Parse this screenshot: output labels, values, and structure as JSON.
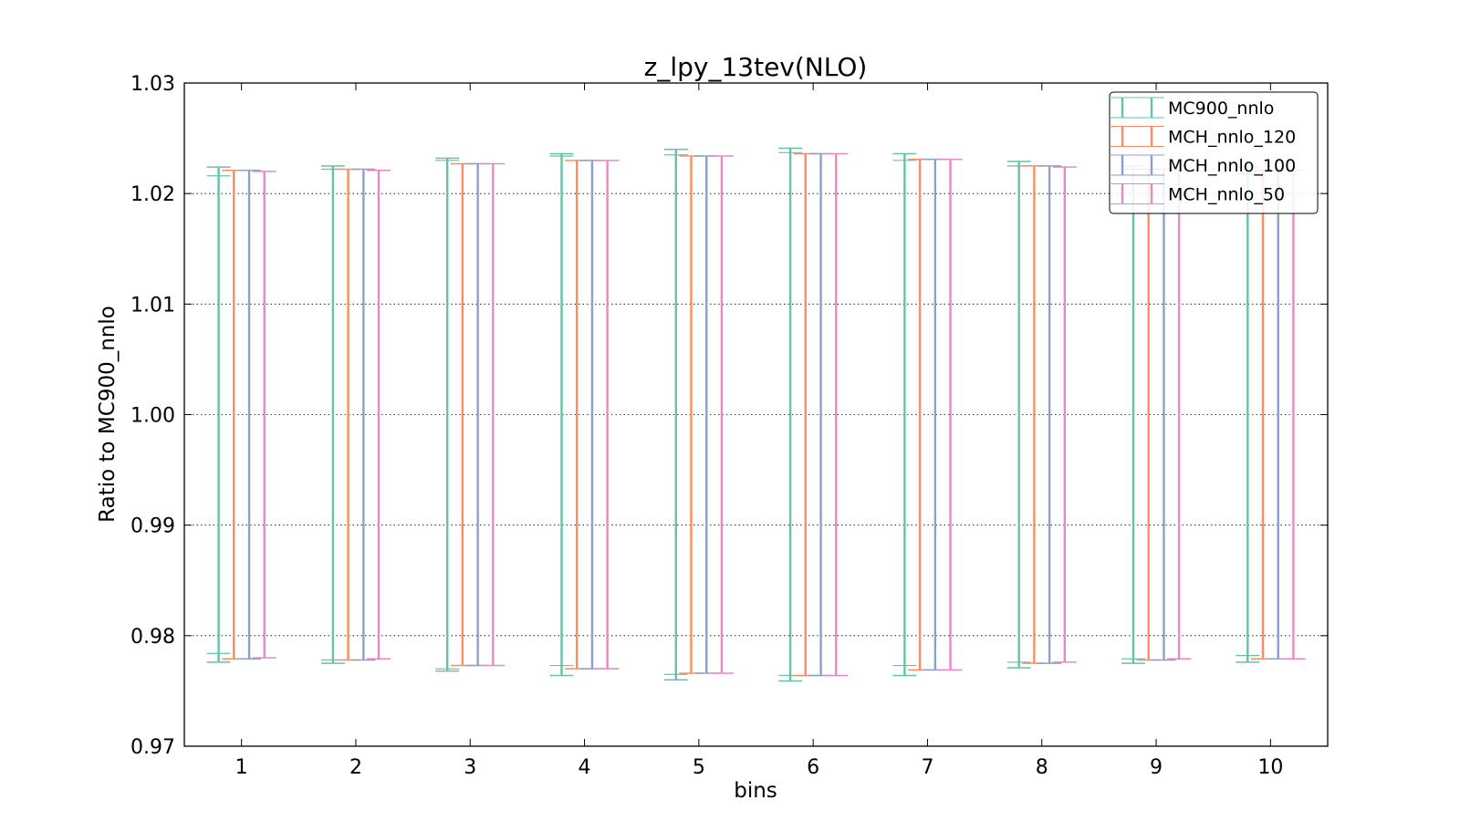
{
  "chart_data": {
    "type": "errorbar",
    "title": "z_lpy_13tev(NLO)",
    "xlabel": "bins",
    "ylabel": "Ratio to MC900_nnlo",
    "x": [
      1,
      2,
      3,
      4,
      5,
      6,
      7,
      8,
      9,
      10
    ],
    "x_tick_labels": [
      "1",
      "2",
      "3",
      "4",
      "5",
      "6",
      "7",
      "8",
      "9",
      "10"
    ],
    "xlim": [
      0.5,
      10.5
    ],
    "ylim": [
      0.97,
      1.03
    ],
    "y_ticks": [
      0.97,
      0.98,
      0.99,
      1.0,
      1.01,
      1.02,
      1.03
    ],
    "y_tick_labels": [
      "0.97",
      "0.98",
      "0.99",
      "1.00",
      "1.01",
      "1.02",
      "1.03"
    ],
    "grid": "horizontal dotted",
    "legend_position": "top-right",
    "series": [
      {
        "name": "MC900_nnlo",
        "color": "#66c2a5",
        "offset": -0.2,
        "upper": [
          1.0224,
          1.0225,
          1.0232,
          1.0236,
          1.024,
          1.0241,
          1.0236,
          1.0229,
          1.0225,
          1.0224
        ],
        "lower": [
          0.9776,
          0.9775,
          0.9768,
          0.9764,
          0.976,
          0.9759,
          0.9764,
          0.9771,
          0.9775,
          0.9776
        ],
        "inner_upper": [
          1.0216,
          1.0222,
          1.023,
          1.0234,
          1.0235,
          1.0237,
          1.023,
          1.0225,
          1.0222,
          1.0218
        ],
        "inner_lower": [
          0.9784,
          0.9778,
          0.977,
          0.9773,
          0.9765,
          0.9764,
          0.9773,
          0.9776,
          0.9779,
          0.9782
        ]
      },
      {
        "name": "MCH_nnlo_120",
        "color": "#fc8d62",
        "offset": -0.067,
        "upper": [
          1.0221,
          1.0222,
          1.0227,
          1.023,
          1.0234,
          1.0236,
          1.0231,
          1.0225,
          1.0222,
          1.0221
        ],
        "lower": [
          0.9779,
          0.9778,
          0.9773,
          0.977,
          0.9766,
          0.9764,
          0.9769,
          0.9775,
          0.9778,
          0.9779
        ]
      },
      {
        "name": "MCH_nnlo_100",
        "color": "#8da0cb",
        "offset": 0.067,
        "upper": [
          1.0221,
          1.0222,
          1.0227,
          1.023,
          1.0234,
          1.0236,
          1.0231,
          1.0225,
          1.0222,
          1.0221
        ],
        "lower": [
          0.9779,
          0.9778,
          0.9773,
          0.977,
          0.9766,
          0.9764,
          0.9769,
          0.9775,
          0.9778,
          0.9779
        ]
      },
      {
        "name": "MCH_nnlo_50",
        "color": "#e78ac3",
        "offset": 0.2,
        "upper": [
          1.022,
          1.0221,
          1.0227,
          1.023,
          1.0234,
          1.0236,
          1.0231,
          1.0224,
          1.0221,
          1.0221
        ],
        "lower": [
          0.978,
          0.9779,
          0.9773,
          0.977,
          0.9766,
          0.9764,
          0.9769,
          0.9776,
          0.9779,
          0.9779
        ]
      }
    ]
  }
}
